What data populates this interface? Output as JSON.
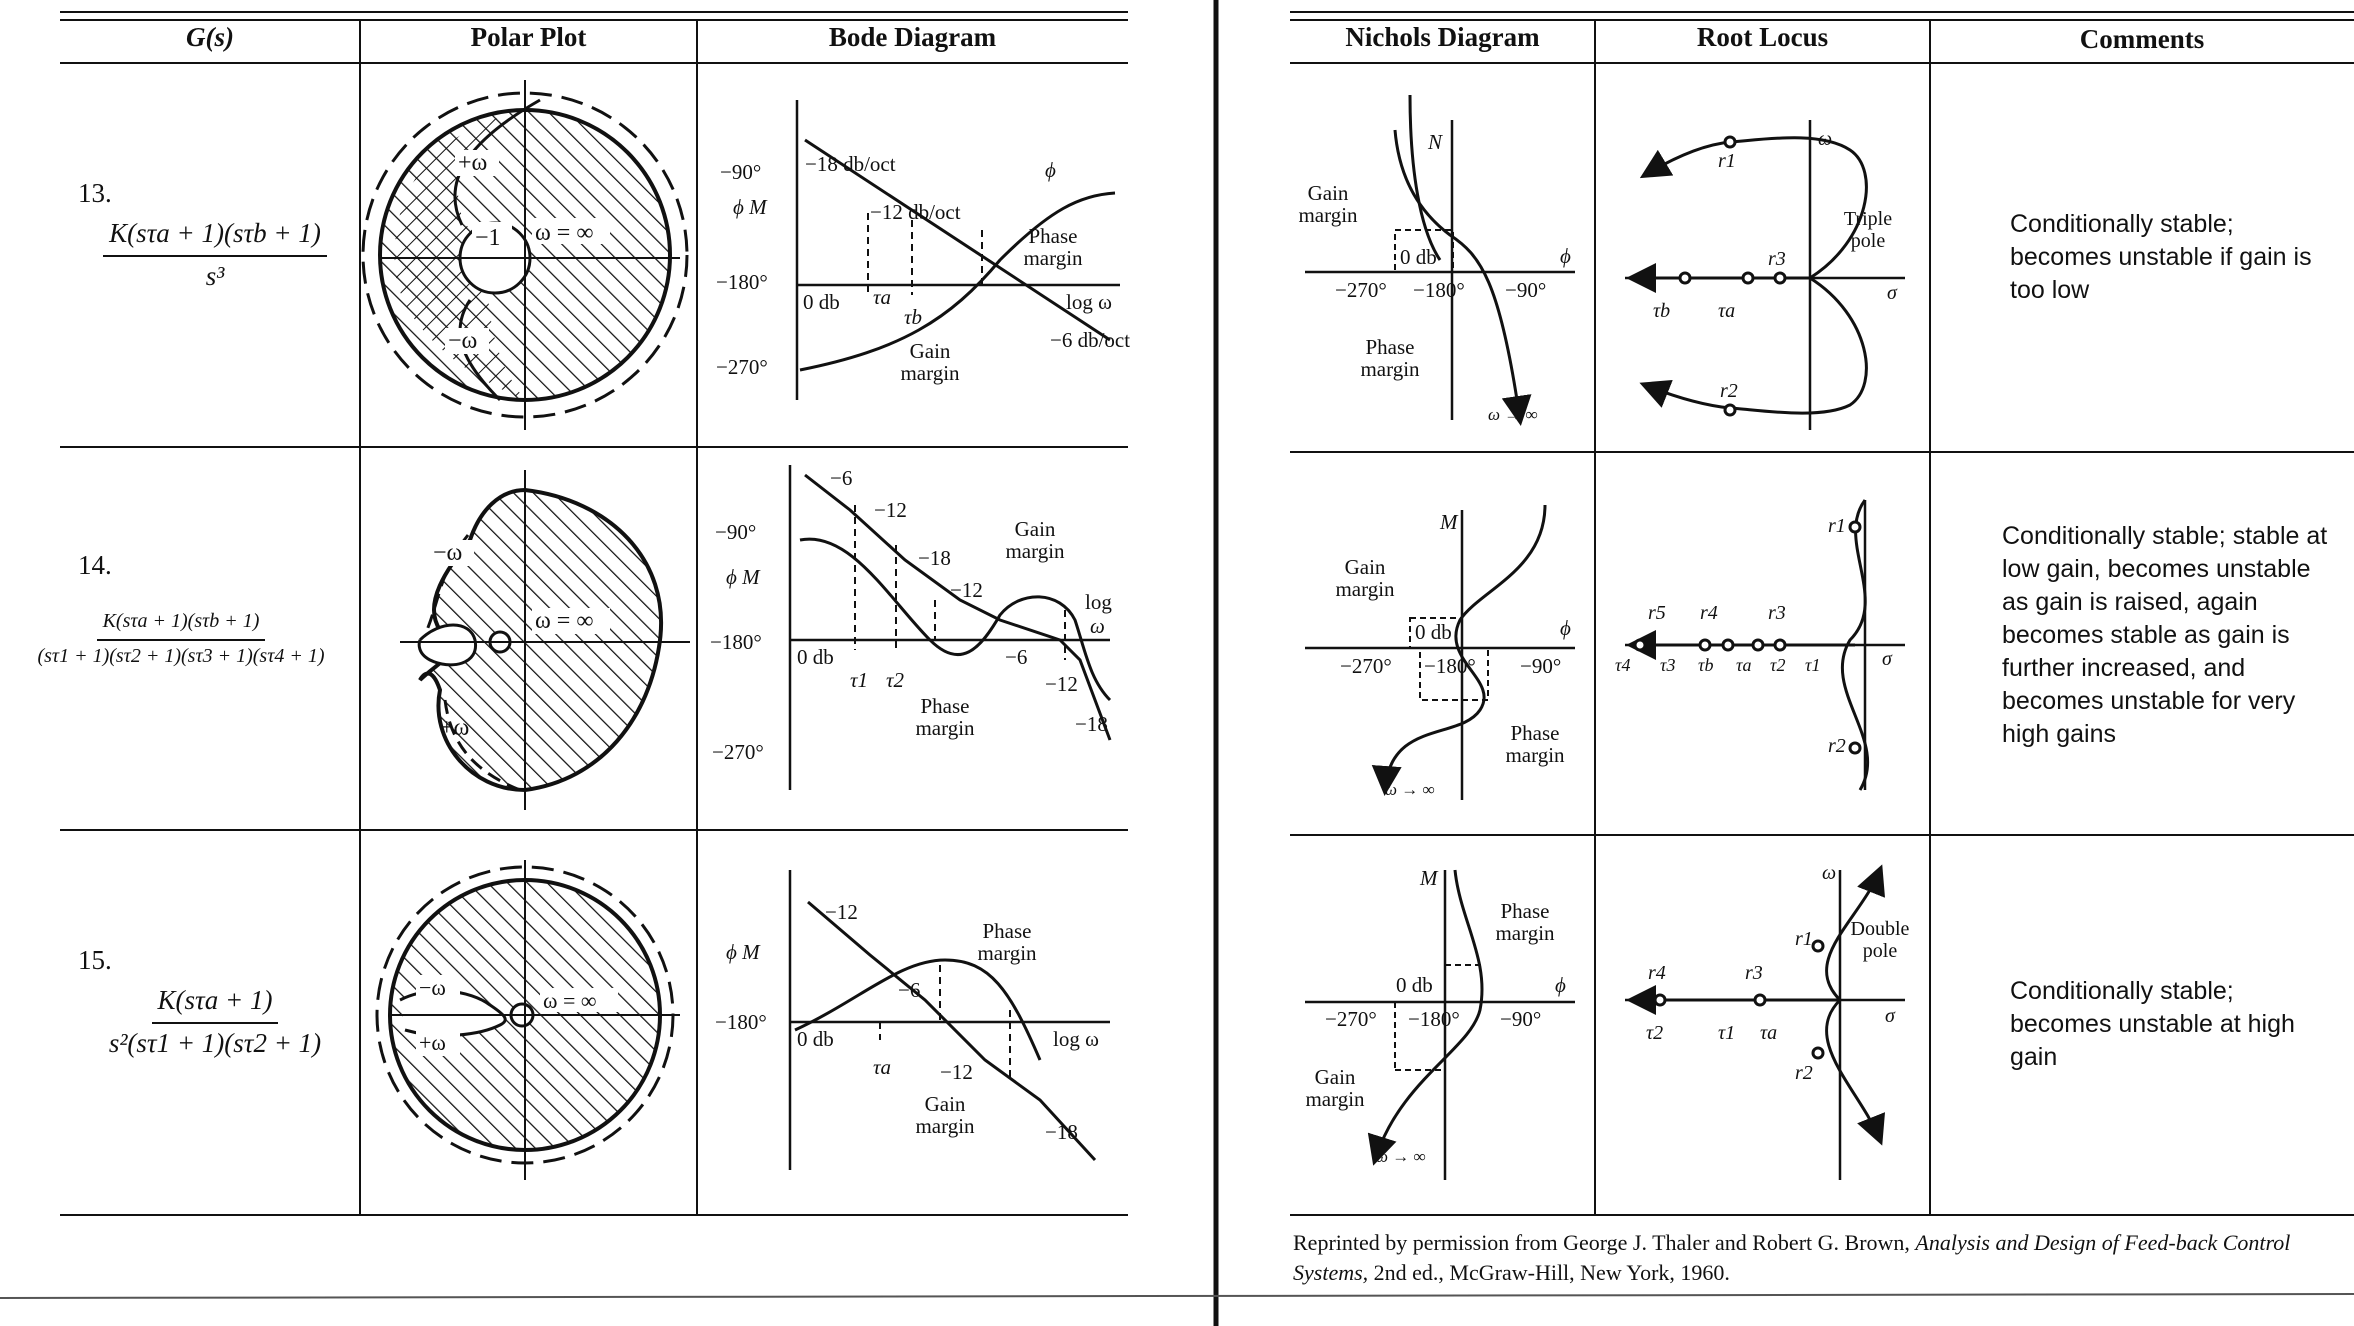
{
  "headers": {
    "gs": "G(s)",
    "polar": "Polar Plot",
    "bode": "Bode Diagram",
    "nichols": "Nichols Diagram",
    "root_locus": "Root Locus",
    "comments": "Comments"
  },
  "rows": [
    {
      "number": "13.",
      "numerator": "K(sτa + 1)(sτb + 1)",
      "denominator": "s³",
      "comment": "Conditionally stable; becomes unstable if gain is too low"
    },
    {
      "number": "14.",
      "numerator": "K(sτa + 1)(sτb + 1)",
      "denominator": "(sτ1 + 1)(sτ2 + 1)(sτ3 + 1)(sτ4 + 1)",
      "comment": "Conditionally stable; stable at low gain, becomes unstable as gain is raised, again becomes stable as gain is further increased, and becomes unstable for very high gains"
    },
    {
      "number": "15.",
      "numerator": "K(sτa + 1)",
      "denominator": "s²(sτ1 + 1)(sτ2 + 1)",
      "comment": "Conditionally stable; becomes unstable at high gain"
    }
  ],
  "labels": {
    "minus_one": "−1",
    "omega_inf": "ω = ∞",
    "plus_omega": "+ω",
    "minus_omega": "−ω",
    "m90": "−90°",
    "m180": "−180°",
    "m270": "−270°",
    "phi": "ϕ",
    "M": "M",
    "phi_M": "ϕ  M",
    "zero_db": "0 db",
    "log_omega": "log ω",
    "log": "log",
    "omega": "ω",
    "sigma": "σ",
    "gain_margin": "Gain margin",
    "phase_margin": "Phase margin",
    "gain": "Gain",
    "phase": "Phase",
    "margin": "margin",
    "r13_18": "−18 db/oct",
    "r13_12": "−12 db/oct",
    "r13_6": "−6 db/oct",
    "m6": "−6",
    "m12": "−12",
    "m18": "−18",
    "omega_to_inf": "ω → ∞",
    "triple": "Triple",
    "double": "Double",
    "pole": "pole",
    "one": "1",
    "minus1": "−1",
    "minus": "−",
    "tau_a": "τa",
    "tau_b": "τb",
    "tau_1": "τ1",
    "tau_2": "τ2",
    "tau_3": "τ3",
    "tau_4": "τ4",
    "r1": "r1",
    "r2": "r2",
    "r3": "r3",
    "r4": "r4",
    "r5": "r5",
    "N": "N"
  },
  "footer": {
    "prefix": "Reprinted by permission from George J. Thaler and Robert G. Brown, ",
    "title": "Analysis and Design of Feed-back Control Systems,",
    "suffix": " 2nd ed., McGraw-Hill, New York, 1960."
  }
}
